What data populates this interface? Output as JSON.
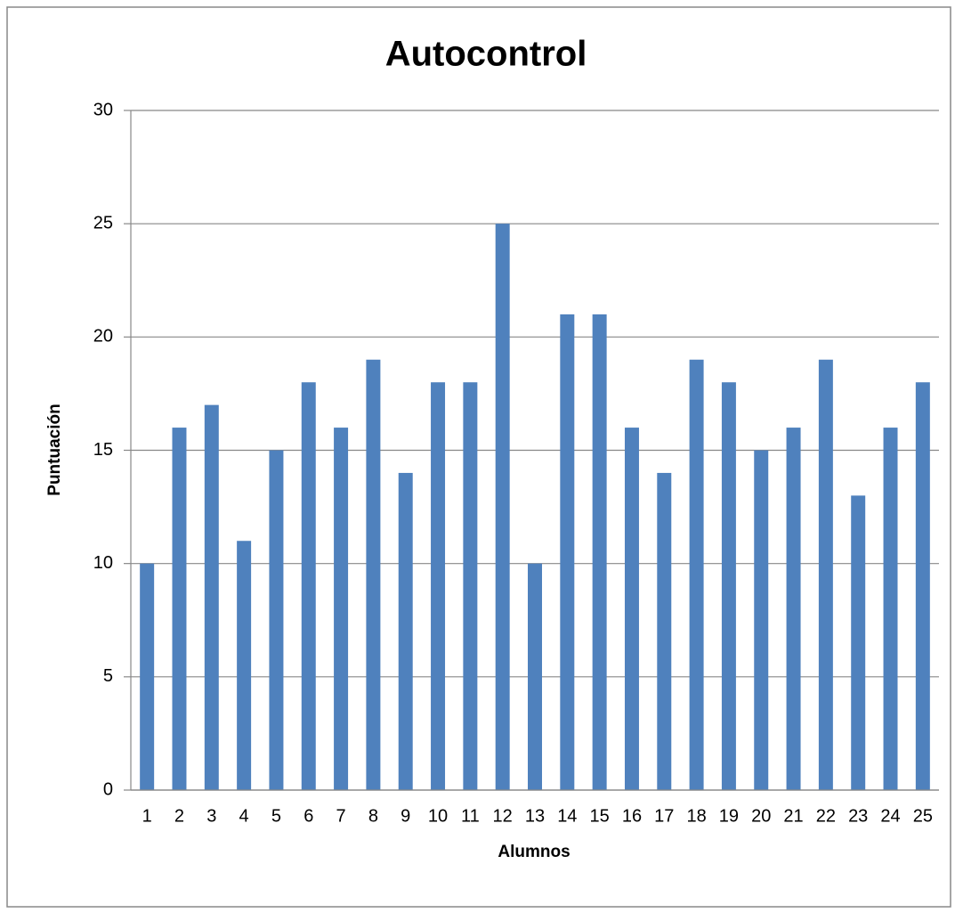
{
  "chart_data": {
    "type": "bar",
    "title": "Autocontrol",
    "x_label": "Alumnos",
    "y_label": "Puntuación",
    "categories": [
      "1",
      "2",
      "3",
      "4",
      "5",
      "6",
      "7",
      "8",
      "9",
      "10",
      "11",
      "12",
      "13",
      "14",
      "15",
      "16",
      "17",
      "18",
      "19",
      "20",
      "21",
      "22",
      "23",
      "24",
      "25"
    ],
    "values": [
      10,
      16,
      17,
      11,
      15,
      18,
      16,
      19,
      14,
      18,
      18,
      25,
      10,
      21,
      21,
      16,
      14,
      19,
      18,
      15,
      16,
      19,
      13,
      16,
      18
    ],
    "color": "#4f81bd",
    "ylim": [
      0,
      30
    ],
    "yticks": [
      0,
      5,
      10,
      15,
      20,
      25,
      30
    ],
    "grid": true
  }
}
